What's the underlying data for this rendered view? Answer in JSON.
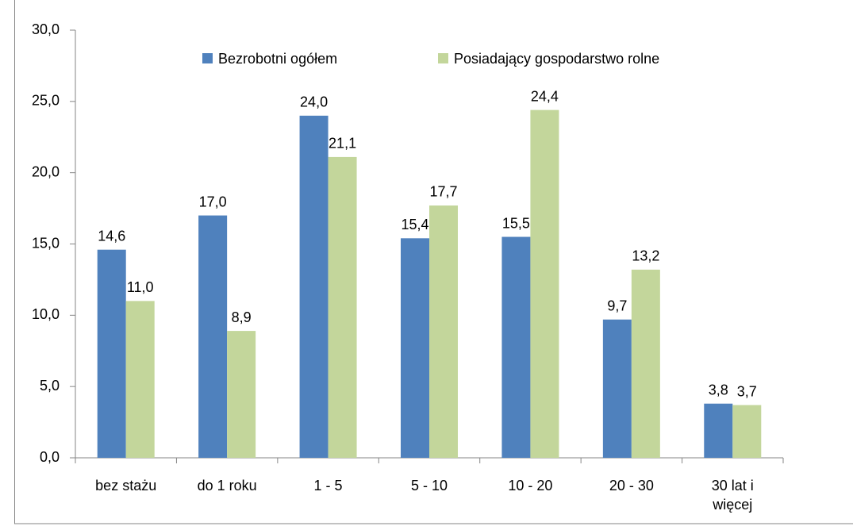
{
  "chart_data": {
    "type": "bar",
    "categories": [
      "bez stażu",
      "do 1 roku",
      "1 - 5",
      "5 - 10",
      "10 - 20",
      "20 - 30",
      "30 lat i więcej"
    ],
    "series": [
      {
        "name": "Bezrobotni ogółem",
        "color": "#4f81bd",
        "values": [
          14.6,
          17.0,
          24.0,
          15.4,
          15.5,
          9.7,
          3.8
        ],
        "value_labels": [
          "14,6",
          "17,0",
          "24,0",
          "15,4",
          "15,5",
          "9,7",
          "3,8"
        ]
      },
      {
        "name": "Posiadający gospodarstwo  rolne",
        "color": "#c3d69b",
        "values": [
          11.0,
          8.9,
          21.1,
          17.7,
          24.4,
          13.2,
          3.7
        ],
        "value_labels": [
          "11,0",
          "8,9",
          "21,1",
          "17,7",
          "24,4",
          "13,2",
          "3,7"
        ]
      }
    ],
    "ylim": [
      0,
      30
    ],
    "yticks": [
      {
        "value": 0,
        "label": "0,0"
      },
      {
        "value": 5,
        "label": "5,0"
      },
      {
        "value": 10,
        "label": "10,0"
      },
      {
        "value": 15,
        "label": "15,0"
      },
      {
        "value": 20,
        "label": "20,0"
      },
      {
        "value": 25,
        "label": "25,0"
      },
      {
        "value": 30,
        "label": "30,0"
      }
    ],
    "grid": false,
    "legend": "top"
  }
}
